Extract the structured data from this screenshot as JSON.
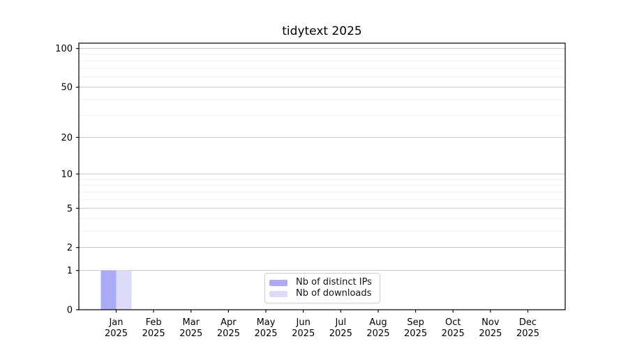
{
  "chart_data": {
    "type": "bar",
    "title": "tidytext 2025",
    "xlabel": "",
    "ylabel": "",
    "x_year": "2025",
    "categories": [
      "Jan",
      "Feb",
      "Mar",
      "Apr",
      "May",
      "Jun",
      "Jul",
      "Aug",
      "Sep",
      "Oct",
      "Nov",
      "Dec"
    ],
    "series": [
      {
        "name": "Nb of distinct IPs",
        "color": "#aaaaf6",
        "values": [
          1,
          0,
          0,
          0,
          0,
          0,
          0,
          0,
          0,
          0,
          0,
          0
        ]
      },
      {
        "name": "Nb of downloads",
        "color": "#dcdcfa",
        "values": [
          1,
          0,
          0,
          0,
          0,
          0,
          0,
          0,
          0,
          0,
          0,
          0
        ]
      }
    ],
    "yscale": "log1p",
    "yticks": [
      0,
      1,
      2,
      5,
      10,
      20,
      50,
      100
    ],
    "minor_yticks": [
      3,
      4,
      6,
      7,
      8,
      9,
      30,
      40,
      60,
      70,
      80,
      90
    ],
    "ylim": [
      0,
      110
    ],
    "grid": "horizontal",
    "legend_position": "bottom-center",
    "colors": {
      "major_grid": "#c6c6c6",
      "minor_grid": "#ebebeb",
      "spine": "#000000",
      "text": "#000000"
    }
  }
}
